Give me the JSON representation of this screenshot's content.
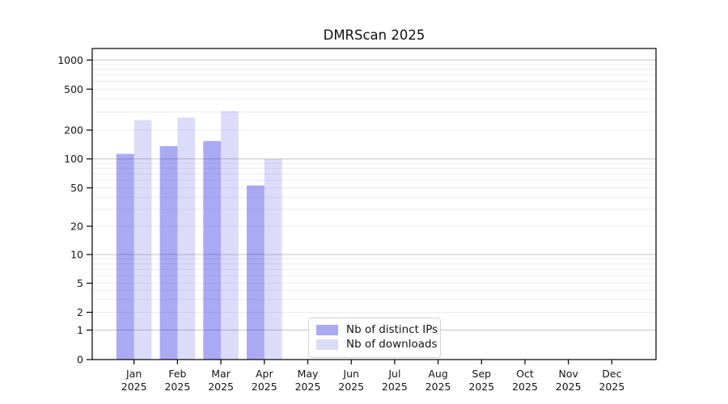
{
  "chart_data": {
    "type": "bar",
    "title": "DMRScan 2025",
    "categories": [
      "Jan 2025",
      "Feb 2025",
      "Mar 2025",
      "Apr 2025",
      "May 2025",
      "Jun 2025",
      "Jul 2025",
      "Aug 2025",
      "Sep 2025",
      "Oct 2025",
      "Nov 2025",
      "Dec 2025"
    ],
    "series": [
      {
        "name": "Nb of distinct IPs",
        "color": "#a9a9f4",
        "base_color": "#0b0bdd",
        "opacity": 0.35,
        "values": [
          113,
          136,
          154,
          53,
          null,
          null,
          null,
          null,
          null,
          null,
          null,
          null
        ]
      },
      {
        "name": "Nb of downloads",
        "color": "#dbdbf8",
        "base_color": "#0b0bdd",
        "opacity": 0.145,
        "values": [
          250,
          265,
          305,
          100,
          null,
          null,
          null,
          null,
          null,
          null,
          null,
          null
        ]
      }
    ],
    "xlabel": "",
    "ylabel": "",
    "yscale": "log-with-zero-baseline",
    "y_ticks": [
      0,
      1,
      2,
      5,
      10,
      20,
      50,
      100,
      200,
      500,
      1000
    ],
    "ylim": [
      0,
      1300
    ],
    "grid": {
      "orientation": "horizontal",
      "major_color": "#c6c6c6",
      "minor_color": "#ebebeb",
      "majors": [
        1,
        10,
        100,
        1000
      ]
    },
    "legend_position": "lower-center inside plot"
  },
  "frame": {
    "border_color": "#000000",
    "background": "#ffffff",
    "text_color": "#151515"
  }
}
